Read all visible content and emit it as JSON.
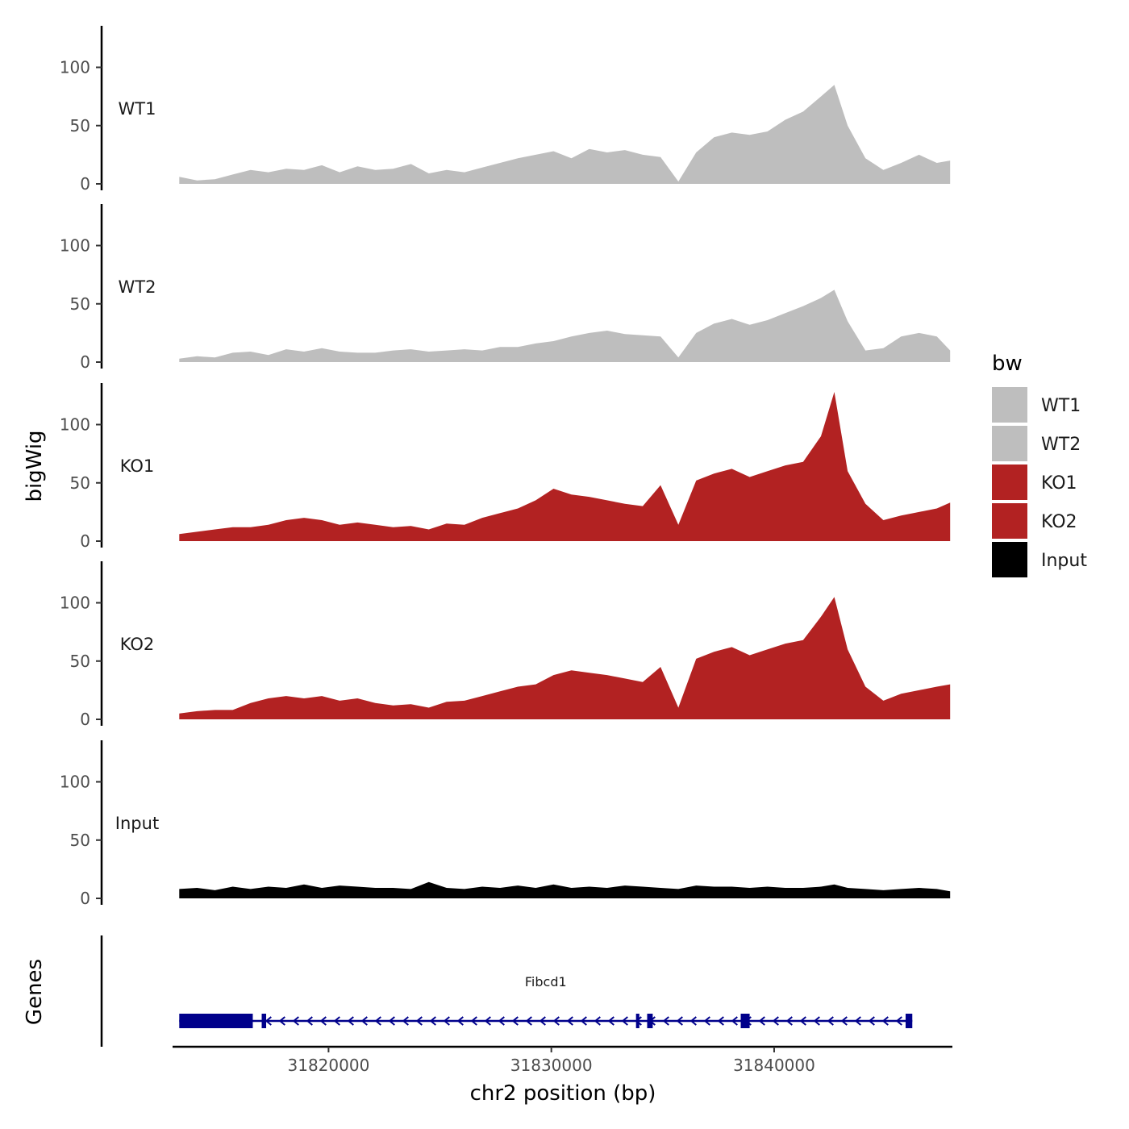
{
  "chart_data": {
    "type": "area",
    "title": "",
    "xlabel": "chr2 position (bp)",
    "ylabel": "bigWig",
    "genes_label": "Genes",
    "xlim": [
      31813000,
      31848000
    ],
    "ylim": [
      0,
      135
    ],
    "x_ticks": [
      31820000,
      31830000,
      31840000
    ],
    "x_tick_labels": [
      "31820000",
      "31830000",
      "31840000"
    ],
    "y_ticks": [
      0,
      50,
      100
    ],
    "y_tick_labels": [
      "0",
      "50",
      "100"
    ],
    "legend": {
      "title": "bw",
      "position": "right",
      "entries": [
        {
          "label": "WT1",
          "color": "#bebebe"
        },
        {
          "label": "WT2",
          "color": "#bebebe"
        },
        {
          "label": "KO1",
          "color": "#b22222"
        },
        {
          "label": "KO2",
          "color": "#b22222"
        },
        {
          "label": "Input",
          "color": "#000000"
        }
      ]
    },
    "x": [
      31813300,
      31814100,
      31814900,
      31815700,
      31816500,
      31817300,
      31818100,
      31818900,
      31819700,
      31820500,
      31821300,
      31822100,
      31822900,
      31823700,
      31824500,
      31825300,
      31826100,
      31826900,
      31827700,
      31828500,
      31829300,
      31830100,
      31830900,
      31831700,
      31832500,
      31833300,
      31834100,
      31834900,
      31835700,
      31836500,
      31837300,
      31838100,
      31838900,
      31839700,
      31840500,
      31841300,
      31842100,
      31842700,
      31843300,
      31844100,
      31844900,
      31845700,
      31846500,
      31847300,
      31847900
    ],
    "series": [
      {
        "name": "WT1",
        "color": "#bebebe",
        "values": [
          6,
          3,
          4,
          8,
          12,
          10,
          13,
          12,
          16,
          10,
          15,
          12,
          13,
          17,
          9,
          12,
          10,
          14,
          18,
          22,
          25,
          28,
          22,
          30,
          27,
          29,
          25,
          23,
          2,
          27,
          40,
          44,
          42,
          45,
          55,
          62,
          75,
          85,
          50,
          22,
          12,
          18,
          25,
          18,
          20
        ]
      },
      {
        "name": "WT2",
        "color": "#bebebe",
        "values": [
          3,
          5,
          4,
          8,
          9,
          6,
          11,
          9,
          12,
          9,
          8,
          8,
          10,
          11,
          9,
          10,
          11,
          10,
          13,
          13,
          16,
          18,
          22,
          25,
          27,
          24,
          23,
          22,
          4,
          25,
          33,
          37,
          32,
          36,
          42,
          48,
          55,
          62,
          35,
          10,
          12,
          22,
          25,
          22,
          10
        ]
      },
      {
        "name": "KO1",
        "color": "#b22222",
        "values": [
          6,
          8,
          10,
          12,
          12,
          14,
          18,
          20,
          18,
          14,
          16,
          14,
          12,
          13,
          10,
          15,
          14,
          20,
          24,
          28,
          35,
          45,
          40,
          38,
          35,
          32,
          30,
          48,
          14,
          52,
          58,
          62,
          55,
          60,
          65,
          68,
          90,
          128,
          60,
          32,
          18,
          22,
          25,
          28,
          33
        ]
      },
      {
        "name": "KO2",
        "color": "#b22222",
        "values": [
          5,
          7,
          8,
          8,
          14,
          18,
          20,
          18,
          20,
          16,
          18,
          14,
          12,
          13,
          10,
          15,
          16,
          20,
          24,
          28,
          30,
          38,
          42,
          40,
          38,
          35,
          32,
          45,
          10,
          52,
          58,
          62,
          55,
          60,
          65,
          68,
          88,
          105,
          60,
          28,
          16,
          22,
          25,
          28,
          30
        ]
      },
      {
        "name": "Input",
        "color": "#000000",
        "values": [
          8,
          9,
          7,
          10,
          8,
          10,
          9,
          12,
          9,
          11,
          10,
          9,
          9,
          8,
          14,
          9,
          8,
          10,
          9,
          11,
          9,
          12,
          9,
          10,
          9,
          11,
          10,
          9,
          8,
          11,
          10,
          10,
          9,
          10,
          9,
          9,
          10,
          12,
          9,
          8,
          7,
          8,
          9,
          8,
          6
        ]
      }
    ],
    "gene": {
      "name": "Fibcd1",
      "strand": "-",
      "start": 31813300,
      "end": 31846200,
      "exons": [
        [
          31813300,
          31816600
        ],
        [
          31817000,
          31817200
        ],
        [
          31833800,
          31833950
        ],
        [
          31834300,
          31834550
        ],
        [
          31838500,
          31838900
        ],
        [
          31845900,
          31846200
        ]
      ],
      "color": "#00008b"
    }
  }
}
